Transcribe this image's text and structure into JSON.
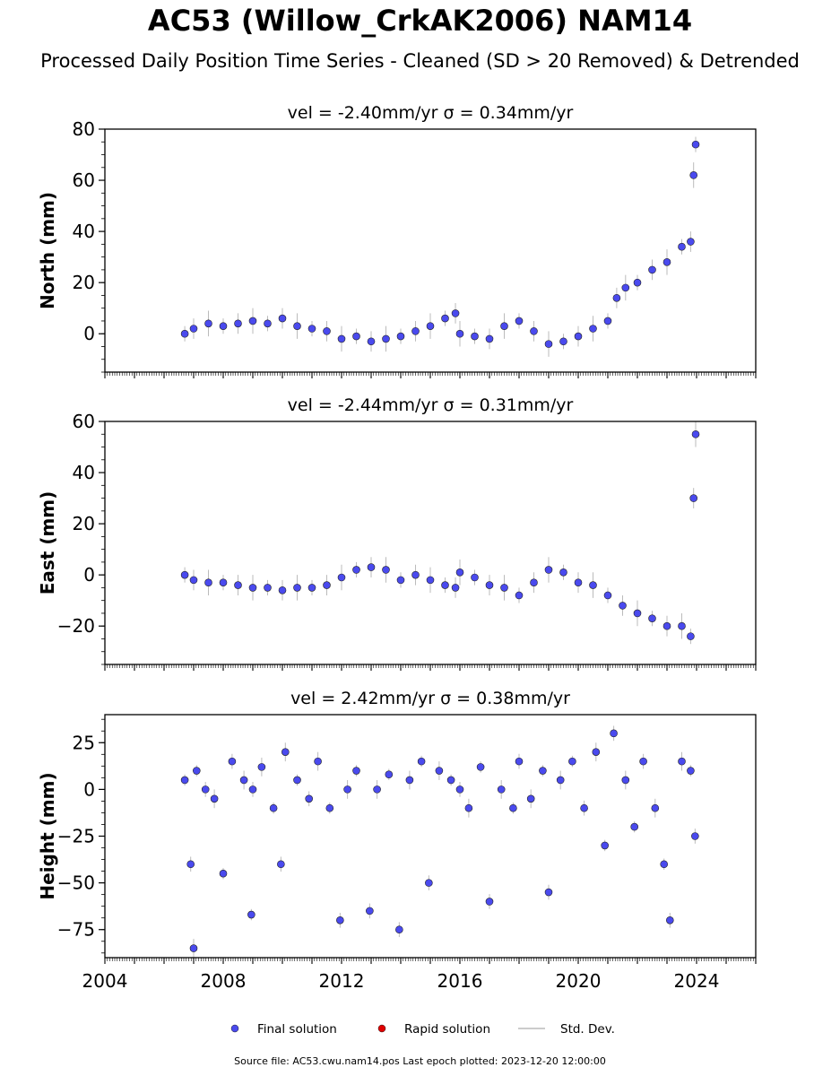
{
  "title": "AC53 (Willow_CrkAK2006) NAM14",
  "subtitle": "Processed Daily Position Time Series - Cleaned (SD > 20 Removed) & Detrended",
  "footer": "Source file: AC53.cwu.nam14.pos  Last epoch plotted: 2023-12-20 12:00:00",
  "colors": {
    "final": "#4a4aee",
    "rapid": "#e00000",
    "stddev": "#bbbbbb"
  },
  "chart_data": [
    {
      "type": "scatter",
      "panel": "north",
      "title": "vel = -2.40mm/yr   σ = 0.34mm/yr",
      "ylabel": "North (mm)",
      "xlim": [
        2004,
        2026
      ],
      "ylim": [
        -15,
        80
      ],
      "yticks": [
        0,
        20,
        40,
        60,
        80
      ],
      "x_tick_labels": [],
      "series": [
        {
          "name": "Final solution",
          "x": [
            2006.7,
            2007.0,
            2007.5,
            2008.0,
            2008.5,
            2009.0,
            2009.5,
            2010.0,
            2010.5,
            2011.0,
            2011.5,
            2012.0,
            2012.5,
            2013.0,
            2013.5,
            2014.0,
            2014.5,
            2015.0,
            2015.5,
            2015.85,
            2016.0,
            2016.5,
            2017.0,
            2017.5,
            2018.0,
            2018.5,
            2019.0,
            2019.5,
            2020.0,
            2020.5,
            2021.0,
            2021.3,
            2021.6,
            2022.0,
            2022.5,
            2023.0,
            2023.5,
            2023.8,
            2023.9,
            2023.97
          ],
          "y": [
            0,
            2,
            4,
            3,
            4,
            5,
            4,
            6,
            3,
            2,
            1,
            -2,
            -1,
            -3,
            -2,
            -1,
            1,
            3,
            6,
            8,
            0,
            -1,
            -2,
            3,
            5,
            1,
            -4,
            -3,
            -1,
            2,
            5,
            14,
            18,
            20,
            25,
            28,
            34,
            36,
            62,
            74
          ]
        }
      ]
    },
    {
      "type": "scatter",
      "panel": "east",
      "title": "vel = -2.44mm/yr   σ = 0.31mm/yr",
      "ylabel": "East (mm)",
      "xlim": [
        2004,
        2026
      ],
      "ylim": [
        -35,
        60
      ],
      "yticks": [
        -20,
        0,
        20,
        40,
        60
      ],
      "x_tick_labels": [],
      "series": [
        {
          "name": "Final solution",
          "x": [
            2006.7,
            2007.0,
            2007.5,
            2008.0,
            2008.5,
            2009.0,
            2009.5,
            2010.0,
            2010.5,
            2011.0,
            2011.5,
            2012.0,
            2012.5,
            2013.0,
            2013.5,
            2014.0,
            2014.5,
            2015.0,
            2015.5,
            2015.85,
            2016.0,
            2016.5,
            2017.0,
            2017.5,
            2018.0,
            2018.5,
            2019.0,
            2019.5,
            2020.0,
            2020.5,
            2021.0,
            2021.5,
            2022.0,
            2022.5,
            2023.0,
            2023.5,
            2023.8,
            2023.9,
            2023.97
          ],
          "y": [
            0,
            -2,
            -3,
            -3,
            -4,
            -5,
            -5,
            -6,
            -5,
            -5,
            -4,
            -1,
            2,
            3,
            2,
            -2,
            0,
            -2,
            -4,
            -5,
            1,
            -1,
            -4,
            -5,
            -8,
            -3,
            2,
            1,
            -3,
            -4,
            -8,
            -12,
            -15,
            -17,
            -20,
            -20,
            -24,
            30,
            55
          ]
        }
      ]
    },
    {
      "type": "scatter",
      "panel": "height",
      "title": "vel = 2.42mm/yr   σ = 0.38mm/yr",
      "ylabel": "Height (mm)",
      "xlim": [
        2004,
        2026
      ],
      "ylim": [
        -90,
        40
      ],
      "yticks": [
        -75,
        -50,
        -25,
        0,
        25
      ],
      "x_tick_labels": [
        "2004",
        "2008",
        "2012",
        "2016",
        "2020",
        "2024"
      ],
      "x_tick_values": [
        2004,
        2008,
        2012,
        2016,
        2020,
        2024
      ],
      "series": [
        {
          "name": "Final solution",
          "x": [
            2006.7,
            2006.9,
            2007.0,
            2007.1,
            2007.4,
            2007.7,
            2008.0,
            2008.3,
            2008.7,
            2008.95,
            2009.0,
            2009.3,
            2009.7,
            2009.95,
            2010.1,
            2010.5,
            2010.9,
            2011.2,
            2011.6,
            2011.95,
            2012.2,
            2012.5,
            2012.95,
            2013.2,
            2013.6,
            2013.95,
            2014.3,
            2014.7,
            2014.95,
            2015.3,
            2015.7,
            2016.0,
            2016.3,
            2016.7,
            2017.0,
            2017.4,
            2017.8,
            2018.0,
            2018.4,
            2018.8,
            2019.0,
            2019.4,
            2019.8,
            2020.2,
            2020.6,
            2020.9,
            2021.2,
            2021.6,
            2021.9,
            2022.2,
            2022.6,
            2022.9,
            2023.1,
            2023.5,
            2023.8,
            2023.95
          ],
          "y": [
            5,
            -40,
            -85,
            10,
            0,
            -5,
            -45,
            15,
            5,
            -67,
            0,
            12,
            -10,
            -40,
            20,
            5,
            -5,
            15,
            -10,
            -70,
            0,
            10,
            -65,
            0,
            8,
            -75,
            5,
            15,
            -50,
            10,
            5,
            0,
            -10,
            12,
            -60,
            0,
            -10,
            15,
            -5,
            10,
            -55,
            5,
            15,
            -10,
            20,
            -30,
            30,
            5,
            -20,
            15,
            -10,
            -40,
            -70,
            15,
            10,
            -25
          ]
        }
      ]
    }
  ],
  "legend": {
    "items": [
      {
        "label": "Final solution",
        "kind": "dot",
        "color": "#4a4aee"
      },
      {
        "label": "Rapid solution",
        "kind": "dot",
        "color": "#e00000"
      },
      {
        "label": "Std. Dev.",
        "kind": "line",
        "color": "#bbbbbb"
      }
    ]
  }
}
